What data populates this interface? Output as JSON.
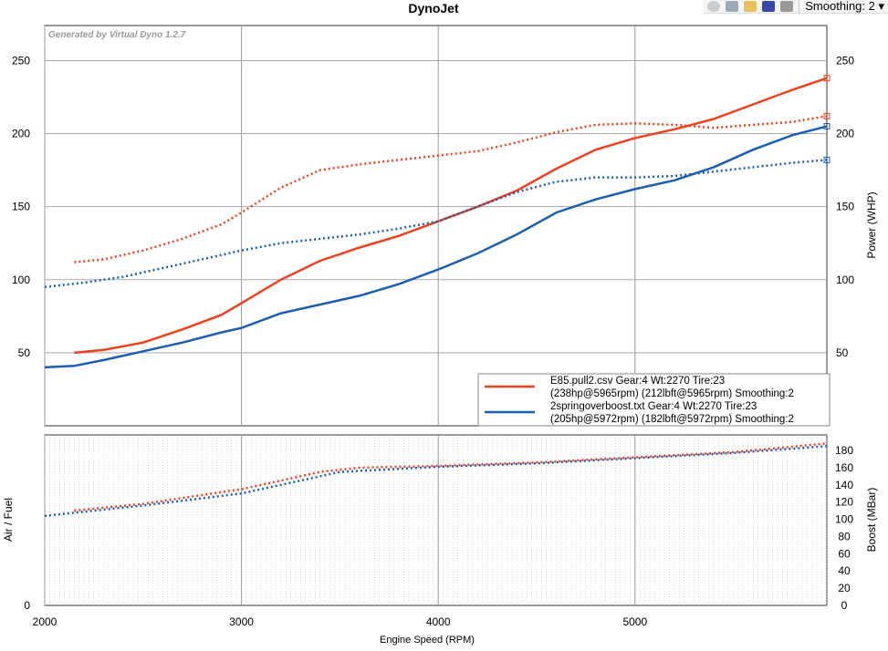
{
  "toolbar": {
    "icons": [
      "zoom-icon",
      "filter-icon",
      "copy-icon",
      "save-icon",
      "print-icon"
    ],
    "smoothing_label": "Smoothing: 2"
  },
  "chart_data": [
    {
      "type": "line",
      "title": "DynoJet",
      "watermark": "Generated by Virtual Dyno 1.2.7",
      "xlabel": "",
      "ylabel_right": "Power (WHP)",
      "xlim": [
        2000,
        5975
      ],
      "ylim": [
        0,
        274
      ],
      "yticks": [
        50,
        100,
        150,
        200,
        250
      ],
      "xgrid": [
        2000,
        3000,
        4000,
        5000
      ],
      "grid": true,
      "legend_placement": "bottom-right",
      "legend": [
        {
          "line1": "E85.pull2.csv Gear:4 Wt:2270 Tire:23",
          "line2": "(238hp@5965rpm) (212lbft@5965rpm) Smoothing:2",
          "color": "#f0401e"
        },
        {
          "line1": "2springoverboost.txt Gear:4 Wt:2270 Tire:23",
          "line2": "(205hp@5972rpm) (182lbft@5972rpm) Smoothing:2",
          "color": "#1a5fb4"
        }
      ],
      "series": [
        {
          "file": "E85.pull2.csv",
          "kind": "power",
          "style": "solid",
          "color": "#f0401e",
          "x": [
            2150,
            2300,
            2500,
            2700,
            2900,
            3000,
            3200,
            3400,
            3600,
            3800,
            4000,
            4200,
            4400,
            4600,
            4800,
            5000,
            5200,
            5400,
            5600,
            5800,
            5975
          ],
          "y": [
            50,
            52,
            57,
            66,
            76,
            84,
            100,
            113,
            122,
            130,
            140,
            150,
            161,
            176,
            189,
            197,
            203,
            210,
            220,
            230,
            238
          ]
        },
        {
          "file": "E85.pull2.csv",
          "kind": "torque",
          "style": "dotted",
          "color": "#f0401e",
          "x": [
            2150,
            2300,
            2500,
            2700,
            2900,
            3000,
            3200,
            3400,
            3600,
            3800,
            4000,
            4200,
            4400,
            4600,
            4800,
            5000,
            5200,
            5400,
            5600,
            5800,
            5975
          ],
          "y": [
            112,
            114,
            120,
            128,
            138,
            146,
            163,
            175,
            179,
            182,
            185,
            188,
            194,
            201,
            206,
            207,
            206,
            204,
            206,
            208,
            212
          ]
        },
        {
          "file": "2springoverboost.txt",
          "kind": "power",
          "style": "solid",
          "color": "#1a5fb4",
          "x": [
            2000,
            2150,
            2300,
            2500,
            2700,
            2900,
            3000,
            3200,
            3400,
            3600,
            3800,
            4000,
            4200,
            4400,
            4600,
            4800,
            5000,
            5200,
            5400,
            5600,
            5800,
            5975
          ],
          "y": [
            40,
            41,
            45,
            51,
            57,
            64,
            67,
            77,
            83,
            89,
            97,
            107,
            118,
            131,
            146,
            155,
            162,
            168,
            177,
            189,
            199,
            205
          ]
        },
        {
          "file": "2springoverboost.txt",
          "kind": "torque",
          "style": "dotted",
          "color": "#1a5fb4",
          "x": [
            2000,
            2200,
            2400,
            2600,
            2800,
            3000,
            3200,
            3400,
            3600,
            3800,
            4000,
            4200,
            4400,
            4600,
            4800,
            5000,
            5200,
            5400,
            5600,
            5800,
            5975
          ],
          "y": [
            95,
            98,
            102,
            108,
            114,
            120,
            125,
            128,
            131,
            135,
            140,
            150,
            160,
            167,
            170,
            170,
            171,
            174,
            177,
            180,
            182
          ]
        }
      ]
    },
    {
      "type": "line",
      "xlabel": "Engine Speed (RPM)",
      "ylabel_left": "Air / Fuel",
      "ylabel_right": "Boost (MBar)",
      "xlim": [
        2000,
        5975
      ],
      "ylim": [
        0,
        198
      ],
      "xticks": [
        2000,
        3000,
        4000,
        5000
      ],
      "yticks_left": [
        0
      ],
      "yticks_right": [
        0,
        20,
        40,
        60,
        80,
        100,
        120,
        140,
        160,
        180
      ],
      "grid": true,
      "series": [
        {
          "file": "E85.pull2.csv",
          "kind": "boost",
          "style": "dotted",
          "color": "#f0401e",
          "x": [
            2150,
            2500,
            3000,
            3200,
            3400,
            3600,
            4000,
            4500,
            5000,
            5500,
            5975
          ],
          "y": [
            110,
            118,
            135,
            145,
            155,
            160,
            162,
            166,
            172,
            178,
            188
          ]
        },
        {
          "file": "2springoverboost.txt",
          "kind": "boost",
          "style": "dotted",
          "color": "#1a5fb4",
          "x": [
            2000,
            2500,
            3000,
            3200,
            3500,
            4000,
            4500,
            5000,
            5500,
            5975
          ],
          "y": [
            104,
            116,
            130,
            140,
            155,
            161,
            165,
            171,
            177,
            185
          ]
        }
      ]
    }
  ]
}
